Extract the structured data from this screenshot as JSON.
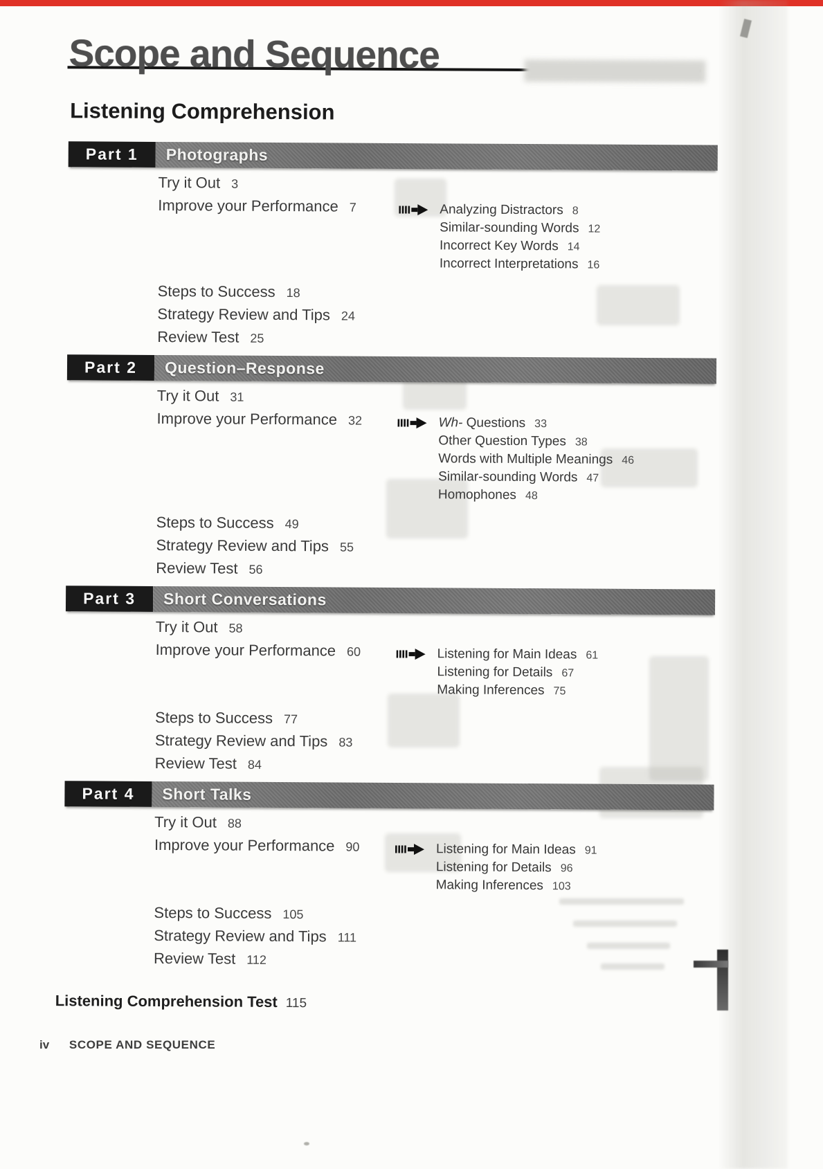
{
  "header": {
    "title": "Scope and Sequence"
  },
  "section": {
    "title": "Listening Comprehension"
  },
  "parts": [
    {
      "id": "Part 1",
      "title": "Photographs",
      "entries_top": [
        {
          "label": "Try it Out",
          "page": "3"
        },
        {
          "label": "Improve your Performance",
          "page": "7"
        }
      ],
      "subtopics": [
        {
          "label": "Analyzing Distractors",
          "page": "8"
        },
        {
          "label": "Similar-sounding Words",
          "page": "12"
        },
        {
          "label": "Incorrect Key Words",
          "page": "14"
        },
        {
          "label": "Incorrect Interpretations",
          "page": "16"
        }
      ],
      "entries_bottom": [
        {
          "label": "Steps to Success",
          "page": "18"
        },
        {
          "label": "Strategy Review and Tips",
          "page": "24"
        },
        {
          "label": "Review Test",
          "page": "25"
        }
      ]
    },
    {
      "id": "Part 2",
      "title": "Question–Response",
      "entries_top": [
        {
          "label": "Try it Out",
          "page": "31"
        },
        {
          "label": "Improve your Performance",
          "page": "32"
        }
      ],
      "subtopics": [
        {
          "lead_italic": "Wh-",
          "label": "Questions",
          "page": "33"
        },
        {
          "label": "Other Question Types",
          "page": "38"
        },
        {
          "label": "Words with Multiple Meanings",
          "page": "46"
        },
        {
          "label": "Similar-sounding Words",
          "page": "47"
        },
        {
          "label": "Homophones",
          "page": "48"
        }
      ],
      "entries_bottom": [
        {
          "label": "Steps to Success",
          "page": "49"
        },
        {
          "label": "Strategy Review and Tips",
          "page": "55"
        },
        {
          "label": "Review Test",
          "page": "56"
        }
      ]
    },
    {
      "id": "Part 3",
      "title": "Short Conversations",
      "entries_top": [
        {
          "label": "Try it Out",
          "page": "58"
        },
        {
          "label": "Improve your Performance",
          "page": "60"
        }
      ],
      "subtopics": [
        {
          "label": "Listening for Main Ideas",
          "page": "61"
        },
        {
          "label": "Listening for Details",
          "page": "67"
        },
        {
          "label": "Making Inferences",
          "page": "75"
        }
      ],
      "entries_bottom": [
        {
          "label": "Steps to Success",
          "page": "77"
        },
        {
          "label": "Strategy Review and Tips",
          "page": "83"
        },
        {
          "label": "Review Test",
          "page": "84"
        }
      ]
    },
    {
      "id": "Part 4",
      "title": "Short Talks",
      "entries_top": [
        {
          "label": "Try it Out",
          "page": "88"
        },
        {
          "label": "Improve your Performance",
          "page": "90"
        }
      ],
      "subtopics": [
        {
          "label": "Listening for Main Ideas",
          "page": "91"
        },
        {
          "label": "Listening for Details",
          "page": "96"
        },
        {
          "label": "Making Inferences",
          "page": "103"
        }
      ],
      "entries_bottom": [
        {
          "label": "Steps to Success",
          "page": "105"
        },
        {
          "label": "Strategy Review and Tips",
          "page": "111"
        },
        {
          "label": "Review Test",
          "page": "112"
        }
      ]
    }
  ],
  "final_entry": {
    "label": "Listening Comprehension Test",
    "page": "115"
  },
  "footer": {
    "page_number": "iv",
    "text": "SCOPE AND SEQUENCE"
  }
}
